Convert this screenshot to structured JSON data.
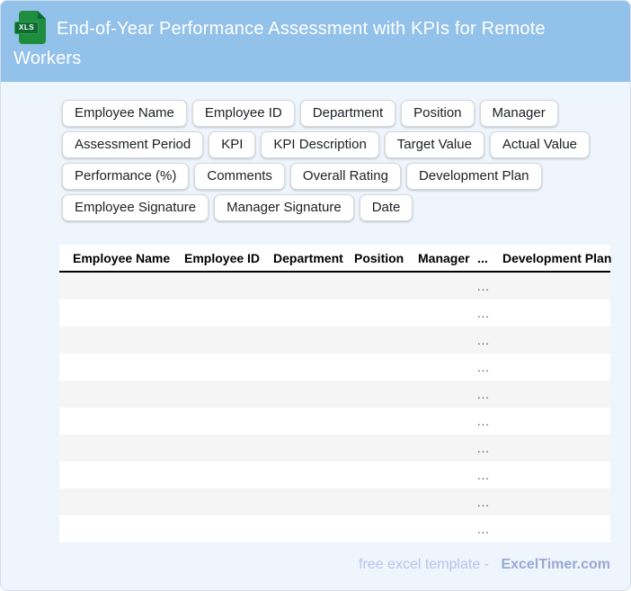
{
  "header": {
    "title": "End-of-Year Performance Assessment with KPIs for Remote Workers",
    "file_badge": "XLS"
  },
  "chips": {
    "rows": [
      [
        "Employee Name",
        "Employee ID",
        "Department",
        "Position",
        "Manager"
      ],
      [
        "Assessment Period",
        "KPI",
        "KPI Description",
        "Target Value",
        "Actual Value"
      ],
      [
        "Performance (%)",
        "Comments",
        "Overall Rating",
        "Development Plan"
      ],
      [
        "Employee Signature",
        "Manager Signature",
        "Date"
      ]
    ]
  },
  "table": {
    "columns": [
      "Employee Name",
      "Employee ID",
      "Department",
      "Position",
      "Manager",
      "...",
      "Development Plan"
    ],
    "row_count": 10,
    "cell_placeholder": "..."
  },
  "footer": {
    "text": "free excel template -",
    "brand": "ExcelTimer.com"
  },
  "colors": {
    "header_bg": "#92c1ea",
    "page_bg": "#eef5fd",
    "icon_green": "#1e8e3e",
    "icon_green_dark": "#0e6b31",
    "stripe_grey": "#f5f5f5",
    "footer_text": "#b7c4e9",
    "footer_brand": "#98a8d3"
  }
}
